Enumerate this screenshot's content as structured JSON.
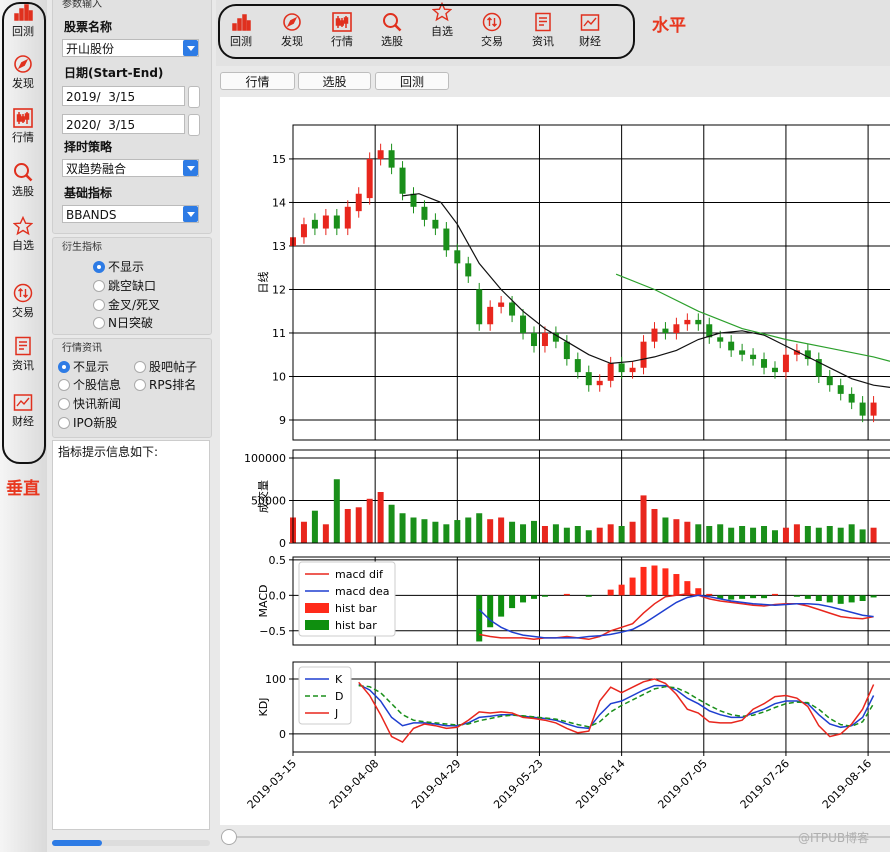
{
  "ui": {
    "toolbar_items": [
      "回测",
      "发现",
      "行情",
      "选股",
      "自选",
      "交易",
      "资讯",
      "财经"
    ],
    "vertical_label": "垂直",
    "horizontal_label": "水平",
    "params": {
      "title": "参数输入",
      "stock_label": "股票名称",
      "stock": "开山股份",
      "date_label": "日期(Start-End)",
      "start": "2019/  3/15",
      "end": "2020/  3/15",
      "strategy_label": "择时策略",
      "strategy": "双趋势融合",
      "indicator_label": "基础指标",
      "indicator": "BBANDS"
    },
    "derived": {
      "title": "衍生指标",
      "options": [
        "不显示",
        "跳空缺口",
        "金叉/死叉",
        "N日突破"
      ],
      "selected": 0
    },
    "news": {
      "title": "行情资讯",
      "options": [
        "不显示",
        "股吧帖子",
        "个股信息",
        "RPS排名",
        "快讯新闻",
        "IPO新股"
      ],
      "selected": 0
    },
    "info_text": "指标提示信息如下:",
    "tabs": [
      "行情",
      "选股",
      "回测"
    ],
    "watermark": "@ITPUB博客"
  },
  "chart_data": [
    {
      "type": "candlestick",
      "ylabel": "日线",
      "up_color": "#e8261d",
      "down_color": "#1a8f1a",
      "x": [
        0,
        2,
        4,
        6,
        8,
        10,
        12,
        14,
        16,
        18,
        20,
        22,
        24,
        26,
        28,
        30,
        32,
        34,
        36,
        38,
        40,
        42,
        44,
        46,
        48,
        50,
        52,
        54,
        56,
        58,
        60,
        62,
        64,
        66,
        68,
        70,
        72,
        74,
        76,
        78,
        80,
        82,
        84,
        86,
        88,
        90,
        92,
        94,
        96,
        98,
        100,
        102,
        104,
        106
      ],
      "open": [
        13.0,
        13.2,
        13.6,
        13.4,
        13.7,
        13.4,
        13.8,
        14.1,
        15.0,
        15.2,
        14.8,
        14.2,
        13.9,
        13.6,
        13.4,
        12.9,
        12.6,
        12.0,
        11.2,
        11.6,
        11.7,
        11.4,
        11.0,
        10.7,
        11.0,
        10.8,
        10.4,
        10.1,
        9.8,
        9.9,
        10.3,
        10.1,
        10.2,
        10.8,
        11.1,
        11.0,
        11.2,
        11.3,
        11.2,
        10.9,
        10.8,
        10.6,
        10.5,
        10.4,
        10.2,
        10.1,
        10.5,
        10.6,
        10.4,
        10.0,
        9.8,
        9.6,
        9.4,
        9.1
      ],
      "high": [
        13.35,
        13.65,
        13.75,
        13.85,
        13.85,
        14.05,
        14.35,
        15.15,
        15.35,
        15.35,
        14.95,
        14.35,
        14.05,
        13.75,
        13.55,
        13.05,
        12.75,
        12.15,
        11.75,
        11.85,
        11.85,
        11.55,
        11.15,
        11.15,
        11.15,
        10.95,
        10.55,
        10.25,
        10.05,
        10.45,
        10.45,
        10.35,
        10.95,
        11.25,
        11.25,
        11.35,
        11.45,
        11.45,
        11.35,
        11.05,
        10.95,
        10.75,
        10.65,
        10.55,
        10.35,
        10.65,
        10.75,
        10.75,
        10.55,
        10.15,
        9.95,
        9.75,
        9.55,
        9.55
      ],
      "low": [
        12.85,
        13.05,
        13.25,
        13.25,
        13.25,
        13.25,
        13.65,
        13.95,
        14.85,
        14.65,
        14.05,
        13.75,
        13.45,
        13.25,
        12.75,
        12.45,
        12.15,
        11.05,
        11.05,
        11.45,
        11.25,
        10.85,
        10.55,
        10.55,
        10.65,
        10.25,
        9.95,
        9.65,
        9.65,
        9.75,
        9.95,
        9.95,
        10.05,
        10.65,
        10.85,
        10.85,
        11.05,
        11.05,
        10.75,
        10.65,
        10.45,
        10.35,
        10.25,
        10.05,
        9.95,
        9.95,
        10.35,
        10.25,
        9.85,
        9.65,
        9.45,
        9.25,
        8.95,
        8.95
      ],
      "close": [
        13.2,
        13.5,
        13.4,
        13.7,
        13.4,
        13.9,
        14.2,
        15.0,
        15.2,
        14.8,
        14.2,
        13.9,
        13.6,
        13.4,
        12.9,
        12.6,
        12.3,
        11.2,
        11.6,
        11.7,
        11.4,
        11.0,
        10.7,
        11.0,
        10.8,
        10.4,
        10.1,
        9.8,
        9.9,
        10.3,
        10.1,
        10.2,
        10.8,
        11.1,
        11.0,
        11.2,
        11.3,
        11.2,
        10.9,
        10.8,
        10.6,
        10.5,
        10.4,
        10.2,
        10.1,
        10.5,
        10.6,
        10.4,
        10.0,
        9.8,
        9.6,
        9.4,
        9.1,
        9.4
      ],
      "lines": [
        {
          "color": "#111111",
          "x": [
            20,
            23,
            27,
            30,
            34,
            38,
            42,
            46,
            50,
            54,
            58,
            62,
            66,
            70,
            74,
            78,
            82,
            86,
            90,
            94,
            98,
            102,
            106,
            109
          ],
          "values": [
            14.15,
            14.2,
            14.0,
            13.5,
            12.6,
            12.0,
            11.5,
            11.1,
            10.8,
            10.5,
            10.3,
            10.35,
            10.45,
            10.6,
            10.85,
            11.0,
            11.05,
            10.95,
            10.7,
            10.45,
            10.2,
            9.95,
            9.8,
            9.75
          ]
        },
        {
          "color": "#2ca02c",
          "x": [
            59,
            66,
            74,
            82,
            90,
            98,
            106,
            109
          ],
          "values": [
            12.35,
            12.0,
            11.5,
            11.1,
            10.85,
            10.65,
            10.45,
            10.35
          ]
        }
      ],
      "xlim": [
        0,
        109
      ],
      "ylim": [
        8.54,
        15.78
      ],
      "yticks": [
        9,
        10,
        11,
        12,
        13,
        14,
        15
      ],
      "grid": true
    },
    {
      "type": "bar",
      "ylabel": "成交量",
      "up_color": "#e8261d",
      "down_color": "#1a8f1a",
      "x": [
        0,
        2,
        4,
        6,
        8,
        10,
        12,
        14,
        16,
        18,
        20,
        22,
        24,
        26,
        28,
        30,
        32,
        34,
        36,
        38,
        40,
        42,
        44,
        46,
        48,
        50,
        52,
        54,
        56,
        58,
        60,
        62,
        64,
        66,
        68,
        70,
        72,
        74,
        76,
        78,
        80,
        82,
        84,
        86,
        88,
        90,
        92,
        94,
        96,
        98,
        100,
        102,
        104,
        106
      ],
      "values": [
        30000,
        25000,
        38000,
        22000,
        75000,
        40000,
        42000,
        52000,
        60000,
        45000,
        35000,
        30000,
        28000,
        25000,
        22000,
        27000,
        30000,
        35000,
        28000,
        30000,
        25000,
        22000,
        26000,
        20000,
        22000,
        18000,
        20000,
        15000,
        18000,
        22000,
        20000,
        25000,
        56000,
        40000,
        30000,
        28000,
        25000,
        22000,
        20000,
        22000,
        18000,
        20000,
        18000,
        20000,
        15000,
        18000,
        22000,
        20000,
        18000,
        20000,
        18000,
        22000,
        16000,
        18000
      ],
      "xlim": [
        0,
        109
      ],
      "ylim": [
        0,
        109400
      ],
      "yticks": [
        0,
        50000,
        100000
      ],
      "grid": true
    },
    {
      "type": "combo",
      "ylabel": "MACD",
      "legend": "upper left",
      "x": [
        0,
        2,
        4,
        6,
        8,
        10,
        12,
        14,
        16,
        18,
        20,
        22,
        24,
        26,
        28,
        30,
        32,
        34,
        36,
        38,
        40,
        42,
        44,
        46,
        48,
        50,
        52,
        54,
        56,
        58,
        60,
        62,
        64,
        66,
        68,
        70,
        72,
        74,
        76,
        78,
        80,
        82,
        84,
        86,
        88,
        90,
        92,
        94,
        96,
        98,
        100,
        102,
        104,
        106
      ],
      "series": [
        {
          "name": "macd dif",
          "color": "#e8261d",
          "kind": "line",
          "values": [
            null,
            null,
            null,
            null,
            null,
            null,
            null,
            null,
            null,
            null,
            null,
            null,
            null,
            null,
            null,
            null,
            null,
            -0.55,
            -0.58,
            -0.6,
            -0.6,
            -0.6,
            -0.62,
            -0.6,
            -0.6,
            -0.58,
            -0.6,
            -0.62,
            -0.58,
            -0.5,
            -0.45,
            -0.4,
            -0.25,
            -0.12,
            -0.02,
            0.0,
            0.02,
            0.0,
            -0.05,
            -0.08,
            -0.1,
            -0.12,
            -0.14,
            -0.15,
            -0.13,
            -0.12,
            -0.12,
            -0.15,
            -0.2,
            -0.25,
            -0.3,
            -0.32,
            -0.33,
            -0.3
          ]
        },
        {
          "name": "macd dea",
          "color": "#1f3fd0",
          "kind": "line",
          "values": [
            null,
            null,
            null,
            null,
            null,
            null,
            null,
            null,
            null,
            null,
            null,
            null,
            null,
            null,
            null,
            null,
            null,
            -0.2,
            -0.35,
            -0.45,
            -0.52,
            -0.56,
            -0.58,
            -0.6,
            -0.6,
            -0.6,
            -0.6,
            -0.58,
            -0.57,
            -0.55,
            -0.52,
            -0.48,
            -0.4,
            -0.3,
            -0.2,
            -0.1,
            -0.03,
            0.0,
            -0.02,
            -0.05,
            -0.08,
            -0.1,
            -0.12,
            -0.13,
            -0.14,
            -0.13,
            -0.12,
            -0.12,
            -0.13,
            -0.16,
            -0.2,
            -0.24,
            -0.28,
            -0.3
          ]
        },
        {
          "name": "hist bar",
          "color": "#ff2a1a",
          "kind": "bar",
          "values": [
            null,
            null,
            null,
            null,
            null,
            null,
            null,
            null,
            null,
            null,
            null,
            null,
            null,
            null,
            null,
            null,
            null,
            null,
            null,
            null,
            null,
            null,
            null,
            null,
            0.0,
            0.02,
            0.0,
            null,
            0.0,
            0.08,
            0.15,
            0.25,
            0.4,
            0.42,
            0.38,
            0.3,
            0.2,
            0.1,
            0.02,
            null,
            null,
            null,
            null,
            null,
            0.02,
            0.0,
            null,
            null,
            null,
            null,
            null,
            null,
            null,
            null
          ]
        },
        {
          "name": "hist bar",
          "color": "#0f8f0f",
          "kind": "bar",
          "values": [
            null,
            null,
            null,
            null,
            null,
            null,
            null,
            null,
            null,
            null,
            null,
            null,
            null,
            null,
            null,
            null,
            null,
            -0.65,
            -0.45,
            -0.3,
            -0.18,
            -0.1,
            -0.05,
            -0.02,
            null,
            null,
            null,
            -0.02,
            null,
            null,
            null,
            null,
            null,
            null,
            null,
            null,
            null,
            null,
            null,
            -0.05,
            -0.06,
            -0.05,
            -0.04,
            -0.04,
            null,
            null,
            -0.02,
            -0.05,
            -0.08,
            -0.1,
            -0.12,
            -0.1,
            -0.08,
            -0.03
          ]
        }
      ],
      "xlim": [
        0,
        109
      ],
      "ylim": [
        -0.7,
        0.54
      ],
      "yticks": [
        {
          "value": -0.5,
          "label": "−0.5"
        },
        {
          "value": 0,
          "label": "0.0"
        },
        0.5
      ],
      "grid": true
    },
    {
      "type": "line",
      "ylabel": "KDJ",
      "legend": "upper left",
      "x": [
        0,
        2,
        4,
        6,
        8,
        10,
        12,
        14,
        16,
        18,
        20,
        22,
        24,
        26,
        28,
        30,
        32,
        34,
        36,
        38,
        40,
        42,
        44,
        46,
        48,
        50,
        52,
        54,
        56,
        58,
        60,
        62,
        64,
        66,
        68,
        70,
        72,
        74,
        76,
        78,
        80,
        82,
        84,
        86,
        88,
        90,
        92,
        94,
        96,
        98,
        100,
        102,
        104,
        106
      ],
      "series": [
        {
          "name": "K",
          "color": "#1f3fd0",
          "dash": false,
          "values": [
            null,
            null,
            null,
            null,
            null,
            null,
            90,
            80,
            60,
            30,
            15,
            20,
            20,
            18,
            15,
            15,
            20,
            30,
            32,
            35,
            35,
            32,
            30,
            28,
            25,
            18,
            12,
            10,
            35,
            55,
            60,
            70,
            80,
            88,
            88,
            80,
            65,
            55,
            42,
            35,
            30,
            30,
            38,
            45,
            55,
            60,
            60,
            55,
            35,
            18,
            12,
            15,
            30,
            70
          ]
        },
        {
          "name": "D",
          "color": "#1a8f1a",
          "dash": true,
          "values": [
            null,
            null,
            null,
            null,
            null,
            null,
            88,
            86,
            75,
            55,
            35,
            25,
            22,
            20,
            18,
            16,
            18,
            24,
            28,
            32,
            34,
            33,
            31,
            29,
            27,
            22,
            17,
            13,
            22,
            40,
            52,
            62,
            72,
            82,
            86,
            84,
            75,
            63,
            52,
            42,
            35,
            32,
            34,
            40,
            48,
            55,
            58,
            57,
            45,
            28,
            17,
            14,
            22,
            55
          ]
        },
        {
          "name": "J",
          "color": "#e8261d",
          "dash": false,
          "values": [
            null,
            null,
            null,
            null,
            null,
            null,
            94,
            70,
            35,
            -5,
            -15,
            10,
            18,
            15,
            10,
            12,
            25,
            40,
            38,
            40,
            38,
            30,
            28,
            25,
            20,
            10,
            2,
            5,
            60,
            85,
            75,
            85,
            95,
            100,
            92,
            72,
            45,
            38,
            22,
            20,
            20,
            25,
            45,
            55,
            68,
            70,
            65,
            50,
            15,
            -5,
            0,
            18,
            45,
            90
          ]
        }
      ],
      "xlim": [
        0,
        109
      ],
      "ylim": [
        -33,
        131
      ],
      "yticks": [
        0,
        100
      ],
      "grid": true,
      "xticks": [
        {
          "value": 0,
          "label": "2019-03-15"
        },
        {
          "value": 15,
          "label": "2019-04-08"
        },
        {
          "value": 30,
          "label": "2019-04-29"
        },
        {
          "value": 45,
          "label": "2019-05-23"
        },
        {
          "value": 60,
          "label": "2019-06-14"
        },
        {
          "value": 75,
          "label": "2019-07-05"
        },
        {
          "value": 90,
          "label": "2019-07-26"
        },
        {
          "value": 105,
          "label": "2019-08-16"
        }
      ]
    }
  ]
}
